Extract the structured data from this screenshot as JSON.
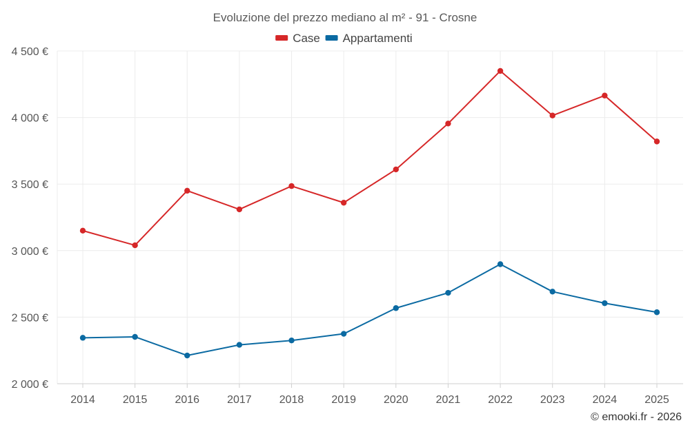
{
  "chart_data": {
    "type": "line",
    "title": "Evoluzione del prezzo mediano al m² - 91 - Crosne",
    "categories": [
      "2014",
      "2015",
      "2016",
      "2017",
      "2018",
      "2019",
      "2020",
      "2021",
      "2022",
      "2023",
      "2024",
      "2025"
    ],
    "series": [
      {
        "name": "Case",
        "color": "#d62728",
        "values": [
          3150,
          3040,
          3450,
          3310,
          3485,
          3360,
          3610,
          3955,
          4350,
          4015,
          4165,
          3820
        ]
      },
      {
        "name": "Appartamenti",
        "color": "#0b6aa2",
        "values": [
          2345,
          2352,
          2212,
          2292,
          2325,
          2375,
          2568,
          2683,
          2898,
          2692,
          2605,
          2537
        ]
      }
    ],
    "ylim": [
      2000,
      4500
    ],
    "yticks": [
      2000,
      2500,
      3000,
      3500,
      4000,
      4500
    ],
    "ytick_labels": [
      "2 000 €",
      "2 500 €",
      "3 000 €",
      "3 500 €",
      "4 000 €",
      "4 500 €"
    ],
    "xlabel": "",
    "ylabel": "",
    "legend_position": "top-center",
    "grid": true
  },
  "credit": "© emooki.fr - 2026"
}
